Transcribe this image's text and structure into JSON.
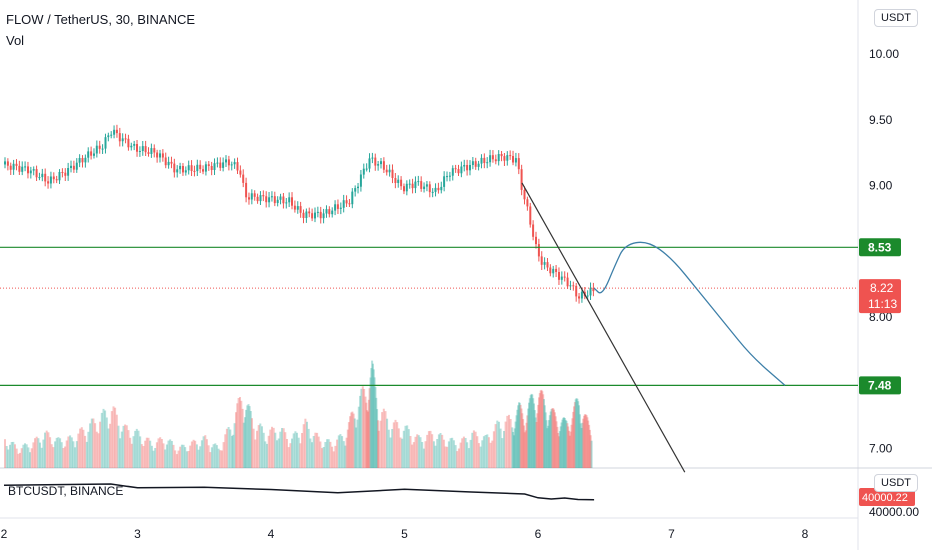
{
  "header": {
    "title": "FLOW / TetherUS, 30, BINANCE",
    "indicator": "Vol"
  },
  "sub_chart": {
    "title": "BTCUSDT, BINANCE",
    "currency": "USDT",
    "price_label": "40000.00",
    "last_label": "40000.22"
  },
  "currency": "USDT",
  "colors": {
    "up": "#26a69a",
    "down": "#ef5350",
    "level": "#1b8a2c",
    "current": "#ef5350",
    "projection": "#3d7fa8",
    "trend": "#333333"
  },
  "chart_data": {
    "type": "candlestick",
    "x_ticks": [
      "2",
      "3",
      "4",
      "5",
      "6",
      "7",
      "8"
    ],
    "y_ticks": [
      "10.00",
      "9.50",
      "9.00",
      "8.00",
      "7.00"
    ],
    "ylim": [
      6.8,
      10.4
    ],
    "current_price": {
      "value": 8.22,
      "label": "8.22",
      "countdown": "11:13"
    },
    "levels": [
      {
        "value": 8.53,
        "label": "8.53"
      },
      {
        "value": 7.48,
        "label": "7.48"
      }
    ],
    "price_path": [
      [
        2.0,
        9.16
      ],
      [
        2.2,
        9.12
      ],
      [
        2.35,
        9.03
      ],
      [
        2.5,
        9.12
      ],
      [
        2.6,
        9.2
      ],
      [
        2.75,
        9.3
      ],
      [
        2.82,
        9.42
      ],
      [
        2.9,
        9.35
      ],
      [
        3.0,
        9.28
      ],
      [
        3.15,
        9.25
      ],
      [
        3.3,
        9.12
      ],
      [
        3.5,
        9.13
      ],
      [
        3.7,
        9.18
      ],
      [
        3.78,
        9.12
      ],
      [
        3.82,
        8.92
      ],
      [
        4.0,
        8.9
      ],
      [
        4.15,
        8.88
      ],
      [
        4.25,
        8.78
      ],
      [
        4.4,
        8.78
      ],
      [
        4.5,
        8.83
      ],
      [
        4.6,
        8.88
      ],
      [
        4.68,
        9.05
      ],
      [
        4.75,
        9.2
      ],
      [
        4.85,
        9.15
      ],
      [
        5.0,
        8.98
      ],
      [
        5.1,
        9.02
      ],
      [
        5.25,
        8.95
      ],
      [
        5.35,
        9.1
      ],
      [
        5.5,
        9.15
      ],
      [
        5.65,
        9.2
      ],
      [
        5.75,
        9.22
      ],
      [
        5.85,
        9.2
      ],
      [
        5.9,
        8.95
      ],
      [
        5.95,
        8.75
      ],
      [
        6.0,
        8.52
      ],
      [
        6.05,
        8.4
      ],
      [
        6.15,
        8.33
      ],
      [
        6.25,
        8.25
      ],
      [
        6.32,
        8.15
      ],
      [
        6.42,
        8.2
      ]
    ],
    "projection_path": [
      [
        6.42,
        8.22
      ],
      [
        6.48,
        8.16
      ],
      [
        6.58,
        8.4
      ],
      [
        6.65,
        8.55
      ],
      [
        6.82,
        8.58
      ],
      [
        7.0,
        8.45
      ],
      [
        7.2,
        8.2
      ],
      [
        7.4,
        7.95
      ],
      [
        7.6,
        7.7
      ],
      [
        7.85,
        7.48
      ]
    ],
    "trend_line": [
      [
        5.88,
        9.02
      ],
      [
        7.1,
        6.82
      ]
    ],
    "volume": [
      [
        2.0,
        0.3
      ],
      [
        2.1,
        0.2
      ],
      [
        2.2,
        0.25
      ],
      [
        2.3,
        0.35
      ],
      [
        2.4,
        0.28
      ],
      [
        2.5,
        0.3
      ],
      [
        2.6,
        0.4
      ],
      [
        2.7,
        0.5
      ],
      [
        2.8,
        0.6
      ],
      [
        2.9,
        0.4
      ],
      [
        3.0,
        0.35
      ],
      [
        3.1,
        0.25
      ],
      [
        3.2,
        0.3
      ],
      [
        3.3,
        0.2
      ],
      [
        3.4,
        0.25
      ],
      [
        3.5,
        0.3
      ],
      [
        3.6,
        0.2
      ],
      [
        3.7,
        0.45
      ],
      [
        3.78,
        0.75
      ],
      [
        3.85,
        0.5
      ],
      [
        3.95,
        0.35
      ],
      [
        4.05,
        0.4
      ],
      [
        4.15,
        0.3
      ],
      [
        4.25,
        0.45
      ],
      [
        4.35,
        0.3
      ],
      [
        4.45,
        0.25
      ],
      [
        4.55,
        0.35
      ],
      [
        4.62,
        0.6
      ],
      [
        4.7,
        0.8
      ],
      [
        4.75,
        1.0
      ],
      [
        4.8,
        0.6
      ],
      [
        4.9,
        0.45
      ],
      [
        5.0,
        0.4
      ],
      [
        5.1,
        0.3
      ],
      [
        5.2,
        0.35
      ],
      [
        5.3,
        0.3
      ],
      [
        5.4,
        0.25
      ],
      [
        5.5,
        0.35
      ],
      [
        5.6,
        0.3
      ],
      [
        5.7,
        0.45
      ],
      [
        5.8,
        0.5
      ],
      [
        5.85,
        0.6
      ],
      [
        5.9,
        0.55
      ],
      [
        5.95,
        0.7
      ],
      [
        6.0,
        0.75
      ],
      [
        6.05,
        0.65
      ],
      [
        6.1,
        0.55
      ],
      [
        6.15,
        0.5
      ],
      [
        6.2,
        0.45
      ],
      [
        6.25,
        0.55
      ],
      [
        6.3,
        0.7
      ],
      [
        6.35,
        0.5
      ],
      [
        6.4,
        0.35
      ]
    ],
    "btc_path": [
      [
        2.0,
        40600
      ],
      [
        2.8,
        40650
      ],
      [
        3.0,
        40500
      ],
      [
        3.5,
        40520
      ],
      [
        4.0,
        40430
      ],
      [
        4.5,
        40300
      ],
      [
        5.0,
        40440
      ],
      [
        5.5,
        40330
      ],
      [
        5.9,
        40250
      ],
      [
        6.0,
        40100
      ],
      [
        6.1,
        40050
      ],
      [
        6.2,
        40090
      ],
      [
        6.3,
        40030
      ],
      [
        6.42,
        40022
      ]
    ]
  }
}
